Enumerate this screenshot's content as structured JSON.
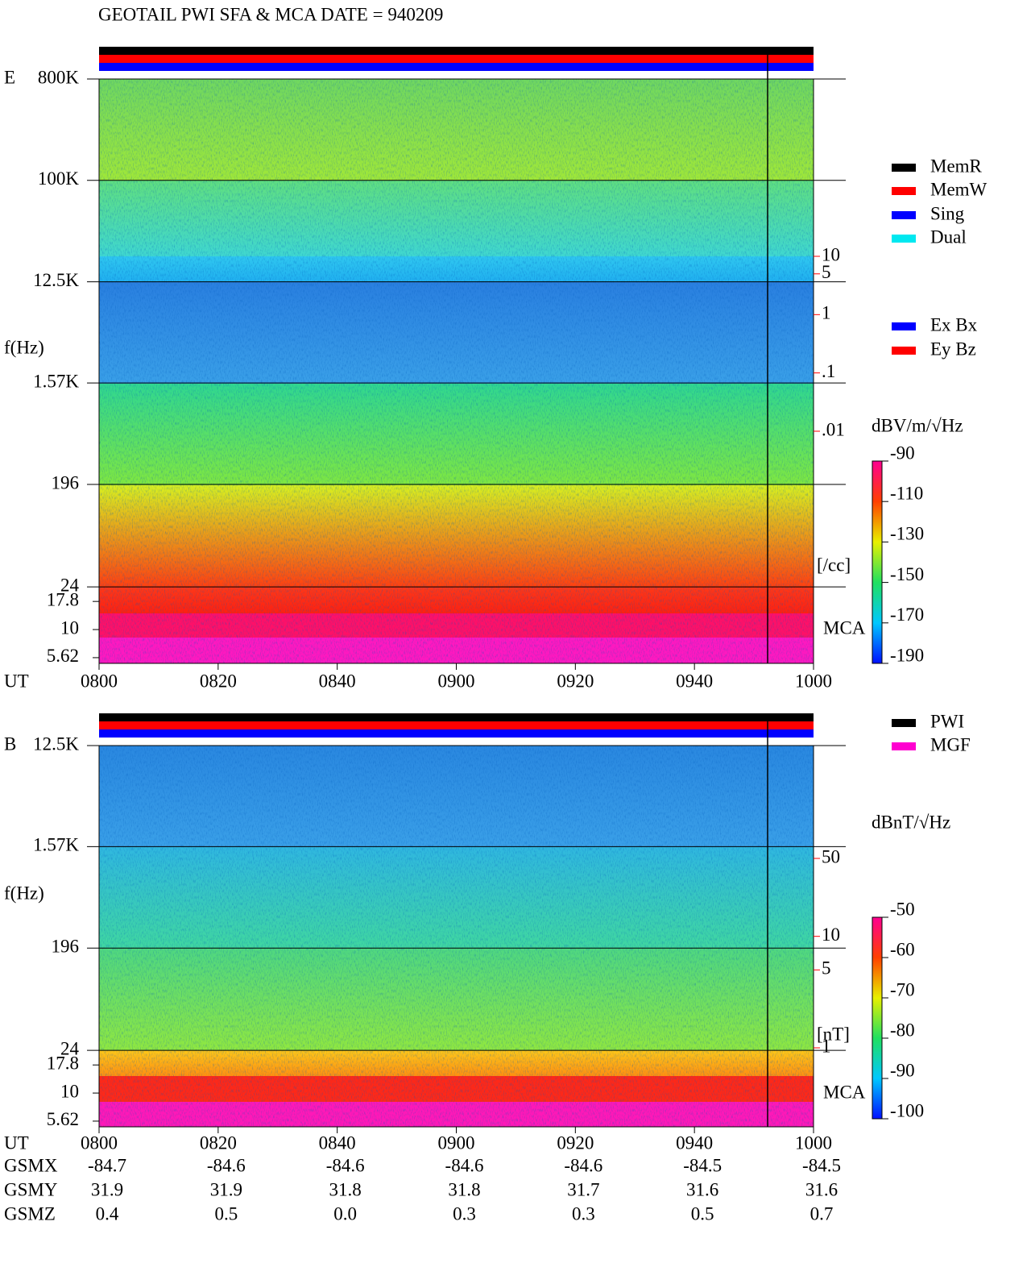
{
  "title": "GEOTAIL  PWI SFA & MCA   DATE = 940209",
  "chart_data": [
    {
      "type": "spectrogram",
      "panel_label": "E",
      "y_label": "f(Hz)",
      "x_label": "UT",
      "log_scale": true,
      "ylim": [
        5,
        800000
      ],
      "yticks": [
        {
          "value": 800000,
          "label": "800K"
        },
        {
          "value": 100000,
          "label": "100K"
        },
        {
          "value": 12500,
          "label": "12.5K"
        },
        {
          "value": 1570,
          "label": "1.57K"
        },
        196,
        24,
        17.8,
        10,
        5.62
      ],
      "xticks": [
        "0800",
        "0820",
        "0840",
        "0900",
        "0920",
        "0940",
        "1000"
      ],
      "y2_label": "[/cc]",
      "y2lim": [
        0.01,
        10
      ],
      "y2ticks": [
        10,
        5,
        1,
        {
          "value": 0.1,
          "label": ".1"
        },
        {
          "value": 0.01,
          "label": ".01"
        }
      ],
      "mca_label": "MCA",
      "colorbar": {
        "label": "dBV/m/√Hz",
        "lim": [
          -190,
          -90
        ],
        "ticks": [
          -90,
          -110,
          -130,
          -150,
          -170,
          -190
        ]
      },
      "legend": [
        {
          "name": "MemR",
          "color": "#000000"
        },
        {
          "name": "MemW",
          "color": "#ff0000"
        },
        {
          "name": "Sing",
          "color": "#0000ff"
        },
        {
          "name": "Dual",
          "color": "#00e8f0"
        }
      ],
      "legend2": [
        {
          "name": "Ex Bx",
          "color": "#0000ff"
        },
        {
          "name": "Ey Bz",
          "color": "#ff0000"
        }
      ]
    },
    {
      "type": "spectrogram",
      "panel_label": "B",
      "y_label": "f(Hz)",
      "x_label": "UT",
      "log_scale": true,
      "ylim": [
        5,
        12500
      ],
      "yticks": [
        {
          "value": 12500,
          "label": "12.5K"
        },
        {
          "value": 1570,
          "label": "1.57K"
        },
        196,
        24,
        17.8,
        10,
        5.62
      ],
      "xticks": [
        "0800",
        "0820",
        "0840",
        "0900",
        "0920",
        "0940",
        "1000"
      ],
      "y2_label": "[nT]",
      "y2lim": [
        1,
        50
      ],
      "y2ticks": [
        50,
        10,
        5,
        1
      ],
      "mca_label": "MCA",
      "colorbar": {
        "label": "dBnT/√Hz",
        "lim": [
          -100,
          -50
        ],
        "ticks": [
          -50,
          -60,
          -70,
          -80,
          -90,
          -100
        ]
      },
      "legend": [
        {
          "name": "PWI",
          "color": "#000000"
        },
        {
          "name": "MGF",
          "color": "#ff00d0"
        }
      ]
    }
  ],
  "orbit": [
    {
      "name": "GSMX",
      "values": [
        "-84.7",
        "-84.6",
        "-84.6",
        "-84.6",
        "-84.6",
        "-84.5",
        "-84.5"
      ]
    },
    {
      "name": "GSMY",
      "values": [
        "31.9",
        "31.9",
        "31.8",
        "31.8",
        "31.7",
        "31.6",
        "31.6"
      ]
    },
    {
      "name": "GSMZ",
      "values": [
        "0.4",
        "0.5",
        "0.0",
        "0.3",
        "0.3",
        "0.5",
        "0.7"
      ]
    }
  ]
}
